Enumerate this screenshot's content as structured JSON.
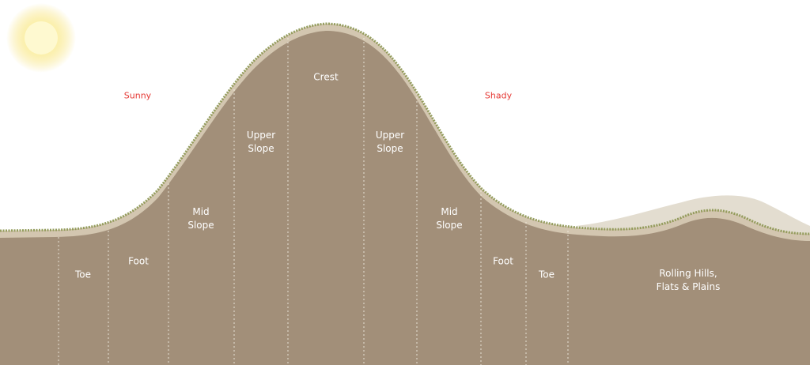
{
  "aspects": {
    "sunny": "Sunny",
    "shady": "Shady"
  },
  "zones": [
    {
      "id": "toe-sunny",
      "label": "Toe"
    },
    {
      "id": "foot-sunny",
      "label": "Foot"
    },
    {
      "id": "mid-slope-sunny",
      "label": "Mid\nSlope"
    },
    {
      "id": "upper-slope-sunny",
      "label": "Upper\nSlope"
    },
    {
      "id": "crest",
      "label": "Crest"
    },
    {
      "id": "upper-slope-shady",
      "label": "Upper\nSlope"
    },
    {
      "id": "mid-slope-shady",
      "label": "Mid\nSlope"
    },
    {
      "id": "foot-shady",
      "label": "Foot"
    },
    {
      "id": "toe-shady",
      "label": "Toe"
    },
    {
      "id": "rolling-hills",
      "label": "Rolling Hills,\nFlats & Plains"
    }
  ],
  "colors": {
    "ground": "#a28f79",
    "topsoil_band": "#d3c6b0",
    "grass": "#8b9550",
    "aspect_text": "#e53935",
    "distant_hill": "#e3ddd0",
    "sun": "#fdf6b8",
    "sun_glow": "#f6e37a"
  }
}
